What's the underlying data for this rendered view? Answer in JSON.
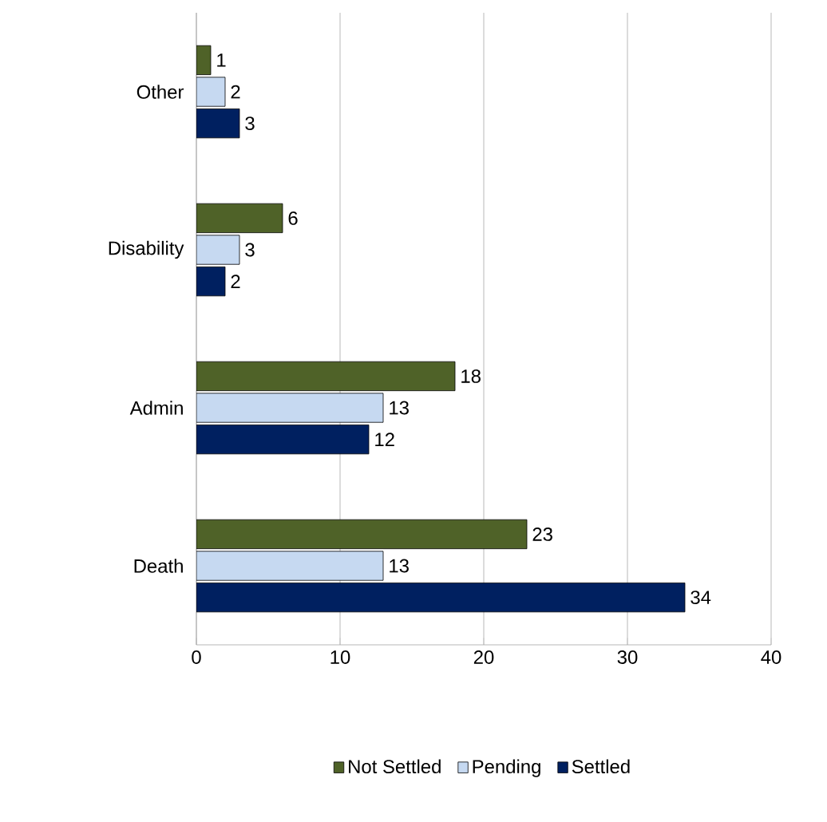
{
  "chart_data": {
    "type": "bar",
    "orientation": "horizontal",
    "categories": [
      "Other",
      "Disability",
      "Admin",
      "Death"
    ],
    "series": [
      {
        "name": "Not Settled",
        "color": "#4f6228",
        "values": [
          1,
          6,
          18,
          23
        ]
      },
      {
        "name": "Pending",
        "color": "#c6d9f1",
        "values": [
          2,
          3,
          13,
          13
        ]
      },
      {
        "name": "Settled",
        "color": "#002060",
        "values": [
          3,
          2,
          12,
          34
        ]
      }
    ],
    "xlim": [
      0,
      40
    ],
    "xticks": [
      0,
      10,
      20,
      30,
      40
    ],
    "grid": "x",
    "legend": "bottom",
    "data_labels": true
  }
}
